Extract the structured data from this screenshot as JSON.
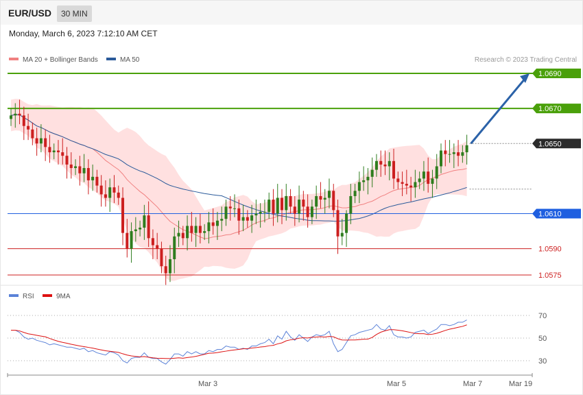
{
  "header": {
    "symbol": "EUR/USD",
    "timeframe": "30 MIN"
  },
  "datetime": "Monday, March 6, 2023 7:12:10 AM CET",
  "legend": {
    "ma20": "MA 20 + Bollinger Bands",
    "ma50": "MA 50"
  },
  "copyright": "Research © 2023 Trading Central",
  "rsi_legend": {
    "rsi": "RSI",
    "ma9": "9MA"
  },
  "colors": {
    "up": "#2e7d1e",
    "down": "#cc1f1f",
    "green_level": "#4aa00a",
    "blue_level": "#1f5fe0",
    "red_level": "#cc1f1f",
    "ma50": "#2a5a9a",
    "bands": "#ffd6d6",
    "arrow": "#2b62a8",
    "rsi": "#5b82d8"
  },
  "chart_data": [
    {
      "type": "candlestick",
      "yrange": [
        1.057,
        1.0697
      ],
      "x_tick_labels": [
        "Mar 3",
        "Mar 5",
        "Mar 7",
        "Mar 19"
      ],
      "levels": [
        {
          "value": 1.069,
          "label": "1.0690",
          "kind": "resistance"
        },
        {
          "value": 1.067,
          "label": "1.0670",
          "kind": "resistance"
        },
        {
          "value": 1.065,
          "label": "1.0650",
          "kind": "current"
        },
        {
          "value": 1.061,
          "label": "1.0610",
          "kind": "pivot"
        },
        {
          "value": 1.059,
          "label": "1.0590",
          "kind": "support"
        },
        {
          "value": 1.0575,
          "label": "1.0575",
          "kind": "support"
        }
      ],
      "ma_dotted_level": 1.0624,
      "target_arrow": {
        "from": 1.065,
        "to": 1.069
      },
      "closes": [
        1.0666,
        1.0667,
        1.0666,
        1.066,
        1.0658,
        1.0653,
        1.065,
        1.0653,
        1.0648,
        1.0645,
        1.0646,
        1.0645,
        1.0643,
        1.0638,
        1.0636,
        1.0637,
        1.0633,
        1.0636,
        1.0629,
        1.0631,
        1.0626,
        1.0621,
        1.0619,
        1.0625,
        1.0622,
        1.0619,
        1.0599,
        1.059,
        1.06,
        1.0601,
        1.0602,
        1.0609,
        1.0596,
        1.0592,
        1.059,
        1.058,
        1.0576,
        1.0584,
        1.0597,
        1.0599,
        1.0596,
        1.0603,
        1.0599,
        1.0603,
        1.0599,
        1.06,
        1.0605,
        1.0603,
        1.0606,
        1.0607,
        1.0614,
        1.0613,
        1.0613,
        1.0606,
        1.0608,
        1.0606,
        1.0609,
        1.061,
        1.0611,
        1.0611,
        1.0618,
        1.061,
        1.0619,
        1.0612,
        1.062,
        1.0614,
        1.061,
        1.0618,
        1.0614,
        1.0608,
        1.0614,
        1.062,
        1.0618,
        1.0619,
        1.0623,
        1.0612,
        1.0597,
        1.0599,
        1.061,
        1.062,
        1.0623,
        1.0628,
        1.0629,
        1.0631,
        1.0635,
        1.064,
        1.0638,
        1.0637,
        1.064,
        1.063,
        1.0628,
        1.0627,
        1.0626,
        1.0625,
        1.0628,
        1.063,
        1.0634,
        1.0627,
        1.063,
        1.0637,
        1.0646,
        1.0644,
        1.0644,
        1.0645,
        1.0643,
        1.0645,
        1.0649
      ]
    },
    {
      "type": "line",
      "name": "RSI",
      "yticks": [
        70,
        50,
        30
      ],
      "values": [
        57,
        57,
        55,
        51,
        49,
        50,
        48,
        47,
        46,
        44,
        45,
        44,
        43,
        42,
        42,
        41,
        40,
        41,
        38,
        39,
        37,
        36,
        35,
        38,
        37,
        35,
        30,
        28,
        32,
        33,
        33,
        37,
        33,
        32,
        32,
        29,
        27,
        31,
        36,
        36,
        34,
        38,
        36,
        38,
        36,
        36,
        39,
        38,
        40,
        40,
        43,
        42,
        42,
        40,
        41,
        40,
        43,
        43,
        45,
        46,
        49,
        45,
        52,
        49,
        56,
        51,
        48,
        53,
        50,
        47,
        51,
        53,
        52,
        53,
        56,
        45,
        38,
        40,
        46,
        52,
        53,
        55,
        56,
        57,
        58,
        62,
        58,
        57,
        61,
        53,
        51,
        51,
        50,
        51,
        55,
        56,
        57,
        54,
        56,
        58,
        62,
        62,
        61,
        62,
        64,
        64,
        66
      ]
    }
  ]
}
